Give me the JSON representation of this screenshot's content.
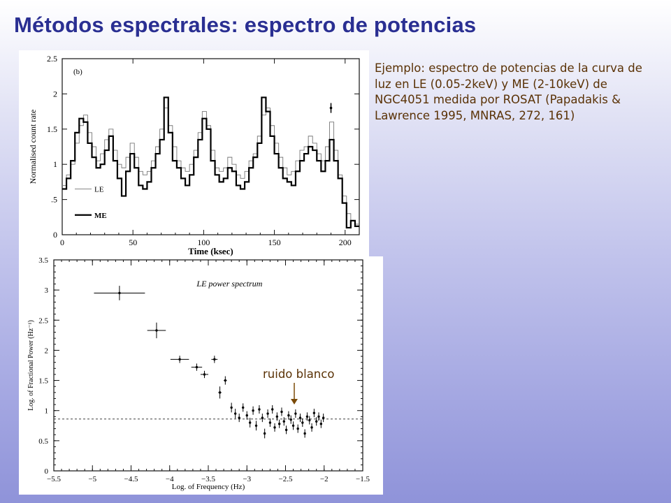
{
  "slide": {
    "title": "Métodos espectrales: espectro de potencias",
    "caption": "Ejemplo: espectro de potencias de la curva de luz en LE (0.05-2keV) y ME (2-10keV) de NGC4051 medida por ROSAT (Papadakis & Lawrence 1995, MNRAS, 272, 161)",
    "annotation": "ruido blanco"
  },
  "colors": {
    "title": "#2a2f92",
    "caption": "#5a3206",
    "arrow": "#7a4a08"
  },
  "chart_data": [
    {
      "type": "line",
      "panel_label": "(b)",
      "xlabel": "Time (ksec)",
      "ylabel": "Normalised count rate",
      "xlim": [
        0,
        210
      ],
      "ylim": [
        0,
        2.5
      ],
      "x_ticks": [
        0,
        50,
        100,
        150,
        200
      ],
      "y_ticks": [
        0,
        0.5,
        1,
        1.5,
        2,
        2.5
      ],
      "y_tick_labels": [
        "0",
        ".5",
        "1",
        "1.5",
        "2",
        "2.5"
      ],
      "legend_position": "bottom-left",
      "legend": [
        "LE",
        "ME"
      ],
      "error_bar_sample": {
        "x": 190,
        "y": 1.8,
        "err": 0.07
      },
      "series": [
        {
          "name": "LE",
          "style": "thin",
          "x": [
            0,
            3,
            6,
            9,
            12,
            15,
            18,
            21,
            24,
            27,
            30,
            33,
            36,
            39,
            42,
            45,
            48,
            51,
            54,
            57,
            60,
            63,
            66,
            69,
            72,
            75,
            78,
            81,
            84,
            87,
            90,
            93,
            96,
            99,
            102,
            105,
            108,
            111,
            114,
            117,
            120,
            123,
            126,
            129,
            132,
            135,
            138,
            141,
            144,
            147,
            150,
            153,
            156,
            159,
            162,
            165,
            168,
            171,
            174,
            177,
            180,
            183,
            186,
            189,
            192,
            195,
            198,
            201,
            204,
            207
          ],
          "y": [
            0.7,
            0.85,
            1.0,
            1.3,
            1.55,
            1.7,
            1.45,
            1.25,
            1.05,
            1.15,
            1.35,
            1.5,
            1.2,
            1.0,
            0.95,
            1.1,
            1.3,
            1.1,
            0.9,
            0.85,
            0.9,
            1.05,
            1.25,
            1.5,
            1.8,
            1.55,
            1.25,
            1.05,
            0.95,
            0.9,
            1.0,
            1.2,
            1.45,
            1.75,
            1.55,
            1.2,
            0.95,
            0.9,
            0.95,
            1.1,
            1.0,
            0.85,
            0.8,
            0.9,
            1.05,
            1.15,
            1.4,
            1.7,
            1.8,
            1.55,
            1.3,
            1.1,
            0.95,
            0.85,
            0.9,
            1.05,
            1.2,
            1.25,
            1.4,
            1.3,
            1.15,
            1.05,
            1.25,
            1.6,
            1.2,
            0.85,
            0.55,
            0.3,
            0.2,
            0.15
          ]
        },
        {
          "name": "ME",
          "style": "thick",
          "x": [
            0,
            3,
            6,
            9,
            12,
            15,
            18,
            21,
            24,
            27,
            30,
            33,
            36,
            39,
            42,
            45,
            48,
            51,
            54,
            57,
            60,
            63,
            66,
            69,
            72,
            75,
            78,
            81,
            84,
            87,
            90,
            93,
            96,
            99,
            102,
            105,
            108,
            111,
            114,
            117,
            120,
            123,
            126,
            129,
            132,
            135,
            138,
            141,
            144,
            147,
            150,
            153,
            156,
            159,
            162,
            165,
            168,
            171,
            174,
            177,
            180,
            183,
            186,
            189,
            192,
            195,
            198,
            201,
            204,
            207
          ],
          "y": [
            0.65,
            0.8,
            1.05,
            1.45,
            1.65,
            1.6,
            1.3,
            1.1,
            0.95,
            1.0,
            1.2,
            1.4,
            1.05,
            0.8,
            0.55,
            0.9,
            1.15,
            0.95,
            0.7,
            0.65,
            0.75,
            0.95,
            1.15,
            1.35,
            1.95,
            1.45,
            1.05,
            0.95,
            0.8,
            0.7,
            0.85,
            1.1,
            1.35,
            1.65,
            1.5,
            1.05,
            0.85,
            0.75,
            0.8,
            0.95,
            0.9,
            0.7,
            0.65,
            0.75,
            0.95,
            1.1,
            1.3,
            1.95,
            1.75,
            1.4,
            1.15,
            0.95,
            0.8,
            0.75,
            0.7,
            0.9,
            1.05,
            1.15,
            1.25,
            1.2,
            1.05,
            0.9,
            1.05,
            1.35,
            1.05,
            0.8,
            0.45,
            0.1,
            0.2,
            0.12
          ]
        }
      ]
    },
    {
      "type": "scatter",
      "title": "LE power spectrum",
      "xlabel": "Log. of Frequency (Hz)",
      "ylabel": "Log. of Fractional Power (Hz⁻¹)",
      "xlim": [
        -5.5,
        -1.5
      ],
      "ylim": [
        0,
        3.5
      ],
      "x_ticks": [
        -5.5,
        -5,
        -4.5,
        -4,
        -3.5,
        -3,
        -2.5,
        -2,
        -1.5
      ],
      "x_tick_labels": [
        "−5.5",
        "−5",
        "−4.5",
        "−4",
        "−3.5",
        "−3",
        "−2.5",
        "−2",
        "−1.5"
      ],
      "y_ticks": [
        0,
        0.5,
        1,
        1.5,
        2,
        2.5,
        3,
        3.5
      ],
      "y_tick_labels": [
        "0",
        "0.5",
        "1",
        "1.5",
        "2",
        "2.5",
        "3",
        "3.5"
      ],
      "white_noise_level": 0.86,
      "points": [
        {
          "x": -4.65,
          "y": 2.95,
          "xerr": 0.33,
          "yerr": 0.12
        },
        {
          "x": -4.17,
          "y": 2.33,
          "xerr": 0.12,
          "yerr": 0.13
        },
        {
          "x": -3.87,
          "y": 1.85,
          "xerr": 0.12,
          "yerr": 0.06
        },
        {
          "x": -3.65,
          "y": 1.72,
          "xerr": 0.07,
          "yerr": 0.06
        },
        {
          "x": -3.55,
          "y": 1.6,
          "xerr": 0.05,
          "yerr": 0.06
        },
        {
          "x": -3.42,
          "y": 1.85,
          "xerr": 0.04,
          "yerr": 0.06
        },
        {
          "x": -3.35,
          "y": 1.3,
          "xerr": 0.02,
          "yerr": 0.1
        },
        {
          "x": -3.28,
          "y": 1.5,
          "xerr": 0.02,
          "yerr": 0.07
        },
        {
          "x": -3.2,
          "y": 1.05,
          "xerr": 0.01,
          "yerr": 0.08
        },
        {
          "x": -3.15,
          "y": 0.95,
          "xerr": 0.01,
          "yerr": 0.08
        },
        {
          "x": -3.1,
          "y": 0.88,
          "xerr": 0.01,
          "yerr": 0.07
        },
        {
          "x": -3.05,
          "y": 1.05,
          "xerr": 0.01,
          "yerr": 0.07
        },
        {
          "x": -3.0,
          "y": 0.92,
          "xerr": 0.01,
          "yerr": 0.07
        },
        {
          "x": -2.96,
          "y": 0.8,
          "xerr": 0.01,
          "yerr": 0.08
        },
        {
          "x": -2.92,
          "y": 1.0,
          "xerr": 0.01,
          "yerr": 0.07
        },
        {
          "x": -2.88,
          "y": 0.75,
          "xerr": 0.01,
          "yerr": 0.08
        },
        {
          "x": -2.84,
          "y": 1.02,
          "xerr": 0.01,
          "yerr": 0.07
        },
        {
          "x": -2.8,
          "y": 0.88,
          "xerr": 0.01,
          "yerr": 0.07
        },
        {
          "x": -2.77,
          "y": 0.62,
          "xerr": 0.01,
          "yerr": 0.08
        },
        {
          "x": -2.73,
          "y": 0.95,
          "xerr": 0.01,
          "yerr": 0.07
        },
        {
          "x": -2.7,
          "y": 0.8,
          "xerr": 0.01,
          "yerr": 0.07
        },
        {
          "x": -2.67,
          "y": 1.02,
          "xerr": 0.01,
          "yerr": 0.07
        },
        {
          "x": -2.64,
          "y": 0.72,
          "xerr": 0.01,
          "yerr": 0.07
        },
        {
          "x": -2.61,
          "y": 0.9,
          "xerr": 0.01,
          "yerr": 0.07
        },
        {
          "x": -2.58,
          "y": 0.78,
          "xerr": 0.01,
          "yerr": 0.07
        },
        {
          "x": -2.55,
          "y": 0.98,
          "xerr": 0.01,
          "yerr": 0.07
        },
        {
          "x": -2.52,
          "y": 0.82,
          "xerr": 0.01,
          "yerr": 0.07
        },
        {
          "x": -2.49,
          "y": 0.68,
          "xerr": 0.01,
          "yerr": 0.07
        },
        {
          "x": -2.46,
          "y": 0.92,
          "xerr": 0.01,
          "yerr": 0.07
        },
        {
          "x": -2.43,
          "y": 0.85,
          "xerr": 0.01,
          "yerr": 0.07
        },
        {
          "x": -2.4,
          "y": 0.75,
          "xerr": 0.01,
          "yerr": 0.07
        },
        {
          "x": -2.37,
          "y": 0.95,
          "xerr": 0.01,
          "yerr": 0.07
        },
        {
          "x": -2.34,
          "y": 0.7,
          "xerr": 0.01,
          "yerr": 0.07
        },
        {
          "x": -2.31,
          "y": 0.88,
          "xerr": 0.01,
          "yerr": 0.07
        },
        {
          "x": -2.28,
          "y": 0.8,
          "xerr": 0.01,
          "yerr": 0.07
        },
        {
          "x": -2.25,
          "y": 0.62,
          "xerr": 0.01,
          "yerr": 0.07
        },
        {
          "x": -2.22,
          "y": 0.9,
          "xerr": 0.01,
          "yerr": 0.07
        },
        {
          "x": -2.19,
          "y": 0.84,
          "xerr": 0.01,
          "yerr": 0.07
        },
        {
          "x": -2.16,
          "y": 0.72,
          "xerr": 0.01,
          "yerr": 0.07
        },
        {
          "x": -2.13,
          "y": 0.96,
          "xerr": 0.01,
          "yerr": 0.07
        },
        {
          "x": -2.1,
          "y": 0.82,
          "xerr": 0.01,
          "yerr": 0.07
        },
        {
          "x": -2.07,
          "y": 0.9,
          "xerr": 0.01,
          "yerr": 0.07
        },
        {
          "x": -2.04,
          "y": 0.78,
          "xerr": 0.01,
          "yerr": 0.07
        },
        {
          "x": -2.01,
          "y": 0.88,
          "xerr": 0.01,
          "yerr": 0.07
        }
      ]
    }
  ]
}
